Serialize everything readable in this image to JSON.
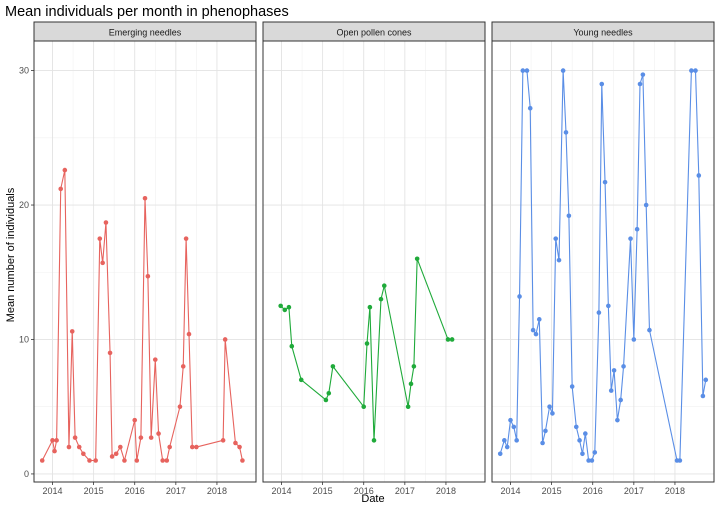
{
  "chart_data": {
    "type": "line",
    "title": "Mean individuals per month in phenophases",
    "xlabel": "Date",
    "ylabel": "Mean number of individuals",
    "x_axis": "time (year)",
    "xlim": [
      2013.55,
      2018.95
    ],
    "ylim": [
      -0.6,
      32.2
    ],
    "x_ticks": [
      2014,
      2015,
      2016,
      2017,
      2018
    ],
    "x_tick_labels": [
      "2014",
      "2015",
      "2016",
      "2017",
      "2018"
    ],
    "y_ticks": [
      0,
      10,
      20,
      30
    ],
    "y_tick_labels": [
      "0",
      "10",
      "20",
      "30"
    ],
    "grid": true,
    "legend": "none",
    "panels": [
      {
        "name": "Emerging needles",
        "color": "#E7635E",
        "points": [
          [
            2013.75,
            1.0
          ],
          [
            2014.0,
            2.5
          ],
          [
            2014.05,
            1.7
          ],
          [
            2014.1,
            2.5
          ],
          [
            2014.2,
            21.2
          ],
          [
            2014.3,
            22.6
          ],
          [
            2014.4,
            2.0
          ],
          [
            2014.48,
            10.6
          ],
          [
            2014.55,
            2.7
          ],
          [
            2014.65,
            2.0
          ],
          [
            2014.75,
            1.5
          ],
          [
            2014.9,
            1.0
          ],
          [
            2015.05,
            1.0
          ],
          [
            2015.15,
            17.5
          ],
          [
            2015.22,
            15.7
          ],
          [
            2015.3,
            18.7
          ],
          [
            2015.4,
            9.0
          ],
          [
            2015.45,
            1.3
          ],
          [
            2015.55,
            1.5
          ],
          [
            2015.65,
            2.0
          ],
          [
            2015.75,
            1.0
          ],
          [
            2016.0,
            4.0
          ],
          [
            2016.05,
            1.0
          ],
          [
            2016.15,
            2.7
          ],
          [
            2016.25,
            20.5
          ],
          [
            2016.32,
            14.7
          ],
          [
            2016.4,
            2.7
          ],
          [
            2016.5,
            8.5
          ],
          [
            2016.58,
            3.0
          ],
          [
            2016.68,
            1.0
          ],
          [
            2016.78,
            1.0
          ],
          [
            2016.85,
            2.0
          ],
          [
            2017.1,
            5.0
          ],
          [
            2017.18,
            8.0
          ],
          [
            2017.25,
            17.5
          ],
          [
            2017.32,
            10.4
          ],
          [
            2017.4,
            2.0
          ],
          [
            2017.5,
            2.0
          ],
          [
            2018.15,
            2.5
          ],
          [
            2018.2,
            10.0
          ],
          [
            2018.45,
            2.3
          ],
          [
            2018.55,
            2.0
          ],
          [
            2018.62,
            1.0
          ]
        ]
      },
      {
        "name": "Open pollen cones",
        "color": "#1FAA3A",
        "points": [
          [
            2013.98,
            12.5
          ],
          [
            2014.08,
            12.2
          ],
          [
            2014.18,
            12.4
          ],
          [
            2014.25,
            9.5
          ],
          [
            2014.48,
            7.0
          ],
          [
            2015.08,
            5.5
          ],
          [
            2015.15,
            6.0
          ],
          [
            2015.25,
            8.0
          ],
          [
            2016.0,
            5.0
          ],
          [
            2016.08,
            9.7
          ],
          [
            2016.15,
            12.4
          ],
          [
            2016.25,
            2.5
          ],
          [
            2016.42,
            13.0
          ],
          [
            2016.5,
            14.0
          ],
          [
            2017.08,
            5.0
          ],
          [
            2017.15,
            6.7
          ],
          [
            2017.22,
            8.0
          ],
          [
            2017.3,
            16.0
          ],
          [
            2018.05,
            10.0
          ],
          [
            2018.15,
            10.0
          ]
        ]
      },
      {
        "name": "Young needles",
        "color": "#5A8EE6",
        "points": [
          [
            2013.75,
            1.5
          ],
          [
            2013.85,
            2.5
          ],
          [
            2013.92,
            2.0
          ],
          [
            2014.0,
            4.0
          ],
          [
            2014.08,
            3.5
          ],
          [
            2014.15,
            2.5
          ],
          [
            2014.22,
            13.2
          ],
          [
            2014.3,
            30.0
          ],
          [
            2014.4,
            30.0
          ],
          [
            2014.48,
            27.2
          ],
          [
            2014.55,
            10.7
          ],
          [
            2014.62,
            10.4
          ],
          [
            2014.7,
            11.5
          ],
          [
            2014.78,
            2.3
          ],
          [
            2014.85,
            3.2
          ],
          [
            2014.95,
            5.0
          ],
          [
            2015.02,
            4.5
          ],
          [
            2015.1,
            17.5
          ],
          [
            2015.18,
            15.9
          ],
          [
            2015.28,
            30.0
          ],
          [
            2015.35,
            25.4
          ],
          [
            2015.42,
            19.2
          ],
          [
            2015.5,
            6.5
          ],
          [
            2015.6,
            3.5
          ],
          [
            2015.68,
            2.5
          ],
          [
            2015.75,
            1.5
          ],
          [
            2015.82,
            3.0
          ],
          [
            2015.9,
            1.0
          ],
          [
            2015.98,
            1.0
          ],
          [
            2016.05,
            1.6
          ],
          [
            2016.15,
            12.0
          ],
          [
            2016.22,
            29.0
          ],
          [
            2016.3,
            21.7
          ],
          [
            2016.38,
            12.5
          ],
          [
            2016.45,
            6.2
          ],
          [
            2016.52,
            7.7
          ],
          [
            2016.6,
            4.0
          ],
          [
            2016.68,
            5.5
          ],
          [
            2016.75,
            8.0
          ],
          [
            2016.92,
            17.5
          ],
          [
            2017.0,
            10.0
          ],
          [
            2017.08,
            18.2
          ],
          [
            2017.15,
            29.0
          ],
          [
            2017.22,
            29.7
          ],
          [
            2017.3,
            20.0
          ],
          [
            2017.38,
            10.7
          ],
          [
            2018.05,
            1.0
          ],
          [
            2018.12,
            1.0
          ],
          [
            2018.4,
            30.0
          ],
          [
            2018.5,
            30.0
          ],
          [
            2018.58,
            22.2
          ],
          [
            2018.68,
            5.8
          ],
          [
            2018.75,
            7.0
          ]
        ]
      }
    ]
  }
}
